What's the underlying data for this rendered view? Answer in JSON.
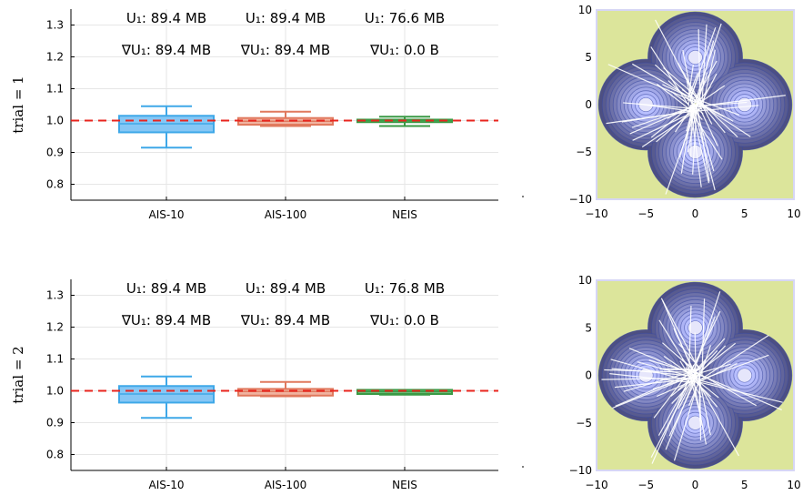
{
  "colors": {
    "ais10": "#3fa8e8",
    "ais10_fill": "#86c7f5",
    "ais100": "#e0795d",
    "ais100_fill": "#f0b3a0",
    "neis": "#3a9a45",
    "neis_fill": "#7cc58a",
    "reference": "#e8241e",
    "contour_bg": "#dce59b",
    "contour_frame": "#d6d6f5",
    "contour_line": "#3a4aa0",
    "contour_core": "#e6e6fb",
    "sample_line": "#ffffff"
  },
  "chart_data": [
    {
      "type": "box",
      "ylabel": "trial = 1",
      "categories": [
        "AIS-10",
        "AIS-100",
        "NEIS"
      ],
      "ylim": [
        0.75,
        1.35
      ],
      "yticks": [
        "0.8",
        "0.9",
        "1.0",
        "1.1",
        "1.2",
        "1.3"
      ],
      "reference_line": 1.0,
      "grid": true,
      "boxes": [
        {
          "whisker_low": 0.915,
          "q1": 0.963,
          "median": 0.99,
          "q3": 1.015,
          "whisker_high": 1.045
        },
        {
          "whisker_low": 0.983,
          "q1": 0.987,
          "median": 0.998,
          "q3": 1.008,
          "whisker_high": 1.028
        },
        {
          "whisker_low": 0.983,
          "q1": 0.995,
          "median": 1.0,
          "q3": 1.003,
          "whisker_high": 1.012
        }
      ],
      "annotations": {
        "u1": [
          "U₁: 89.4 MB",
          "U₁: 89.4 MB",
          "U₁: 76.6 MB"
        ],
        "grad_u1": [
          "∇U₁: 89.4 MB",
          "∇U₁: 89.4 MB",
          "∇U₁: 0.0 B"
        ]
      }
    },
    {
      "type": "box",
      "ylabel": "trial = 2",
      "categories": [
        "AIS-10",
        "AIS-100",
        "NEIS"
      ],
      "ylim": [
        0.75,
        1.35
      ],
      "yticks": [
        "0.8",
        "0.9",
        "1.0",
        "1.1",
        "1.2",
        "1.3"
      ],
      "reference_line": 1.0,
      "grid": true,
      "boxes": [
        {
          "whisker_low": 0.915,
          "q1": 0.963,
          "median": 0.99,
          "q3": 1.015,
          "whisker_high": 1.045
        },
        {
          "whisker_low": 0.983,
          "q1": 0.985,
          "median": 0.998,
          "q3": 1.006,
          "whisker_high": 1.028
        },
        {
          "whisker_low": 0.988,
          "q1": 0.99,
          "median": 0.997,
          "q3": 1.003,
          "whisker_high": 1.003
        }
      ],
      "annotations": {
        "u1": [
          "U₁: 89.4 MB",
          "U₁: 89.4 MB",
          "U₁: 76.8 MB"
        ],
        "grad_u1": [
          "∇U₁: 89.4 MB",
          "∇U₁: 89.4 MB",
          "∇U₁: 0.0 B"
        ]
      }
    },
    {
      "type": "contour",
      "xlim": [
        -10,
        10
      ],
      "ylim": [
        -10,
        10
      ],
      "xticks": [
        "−10",
        "−5",
        "0",
        "5",
        "10"
      ],
      "yticks": [
        "−10",
        "−5",
        "0",
        "5",
        "10"
      ],
      "modes": [
        [
          0,
          5
        ],
        [
          -5,
          0
        ],
        [
          5,
          0
        ],
        [
          0,
          -5
        ]
      ],
      "sample_lines": true
    },
    {
      "type": "contour",
      "xlim": [
        -10,
        10
      ],
      "ylim": [
        -10,
        10
      ],
      "xticks": [
        "−10",
        "−5",
        "0",
        "5",
        "10"
      ],
      "yticks": [
        "−10",
        "−5",
        "0",
        "5",
        "10"
      ],
      "modes": [
        [
          0,
          5
        ],
        [
          -5,
          0
        ],
        [
          5,
          0
        ],
        [
          0,
          -5
        ]
      ],
      "sample_lines": true
    }
  ]
}
